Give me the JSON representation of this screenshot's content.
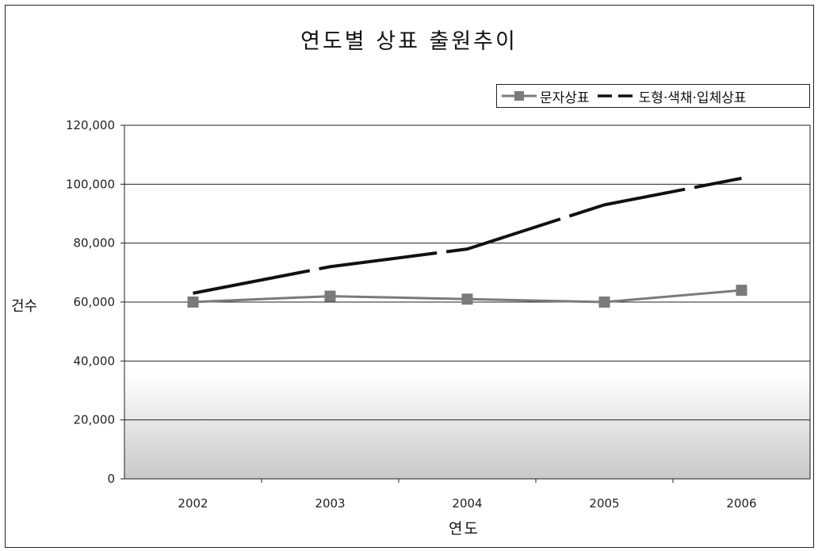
{
  "chart_data": {
    "type": "line",
    "title": "연도별 상표 출원추이",
    "xlabel": "연도",
    "ylabel": "건수",
    "categories": [
      "2002",
      "2003",
      "2004",
      "2005",
      "2006"
    ],
    "ylim": [
      0,
      120000
    ],
    "yticks": [
      "0",
      "20,000",
      "40,000",
      "60,000",
      "80,000",
      "100,000",
      "120,000"
    ],
    "grid": true,
    "legend_position": "top-right",
    "series": [
      {
        "name": "문자상표",
        "values": [
          60000,
          62000,
          61000,
          60000,
          64000
        ],
        "color": "#7a7a7a",
        "marker": "square"
      },
      {
        "name": "도형·색채·입체상표",
        "values": [
          63000,
          72000,
          78000,
          93000,
          102000
        ],
        "color": "#111111",
        "style": "dashed"
      }
    ]
  }
}
